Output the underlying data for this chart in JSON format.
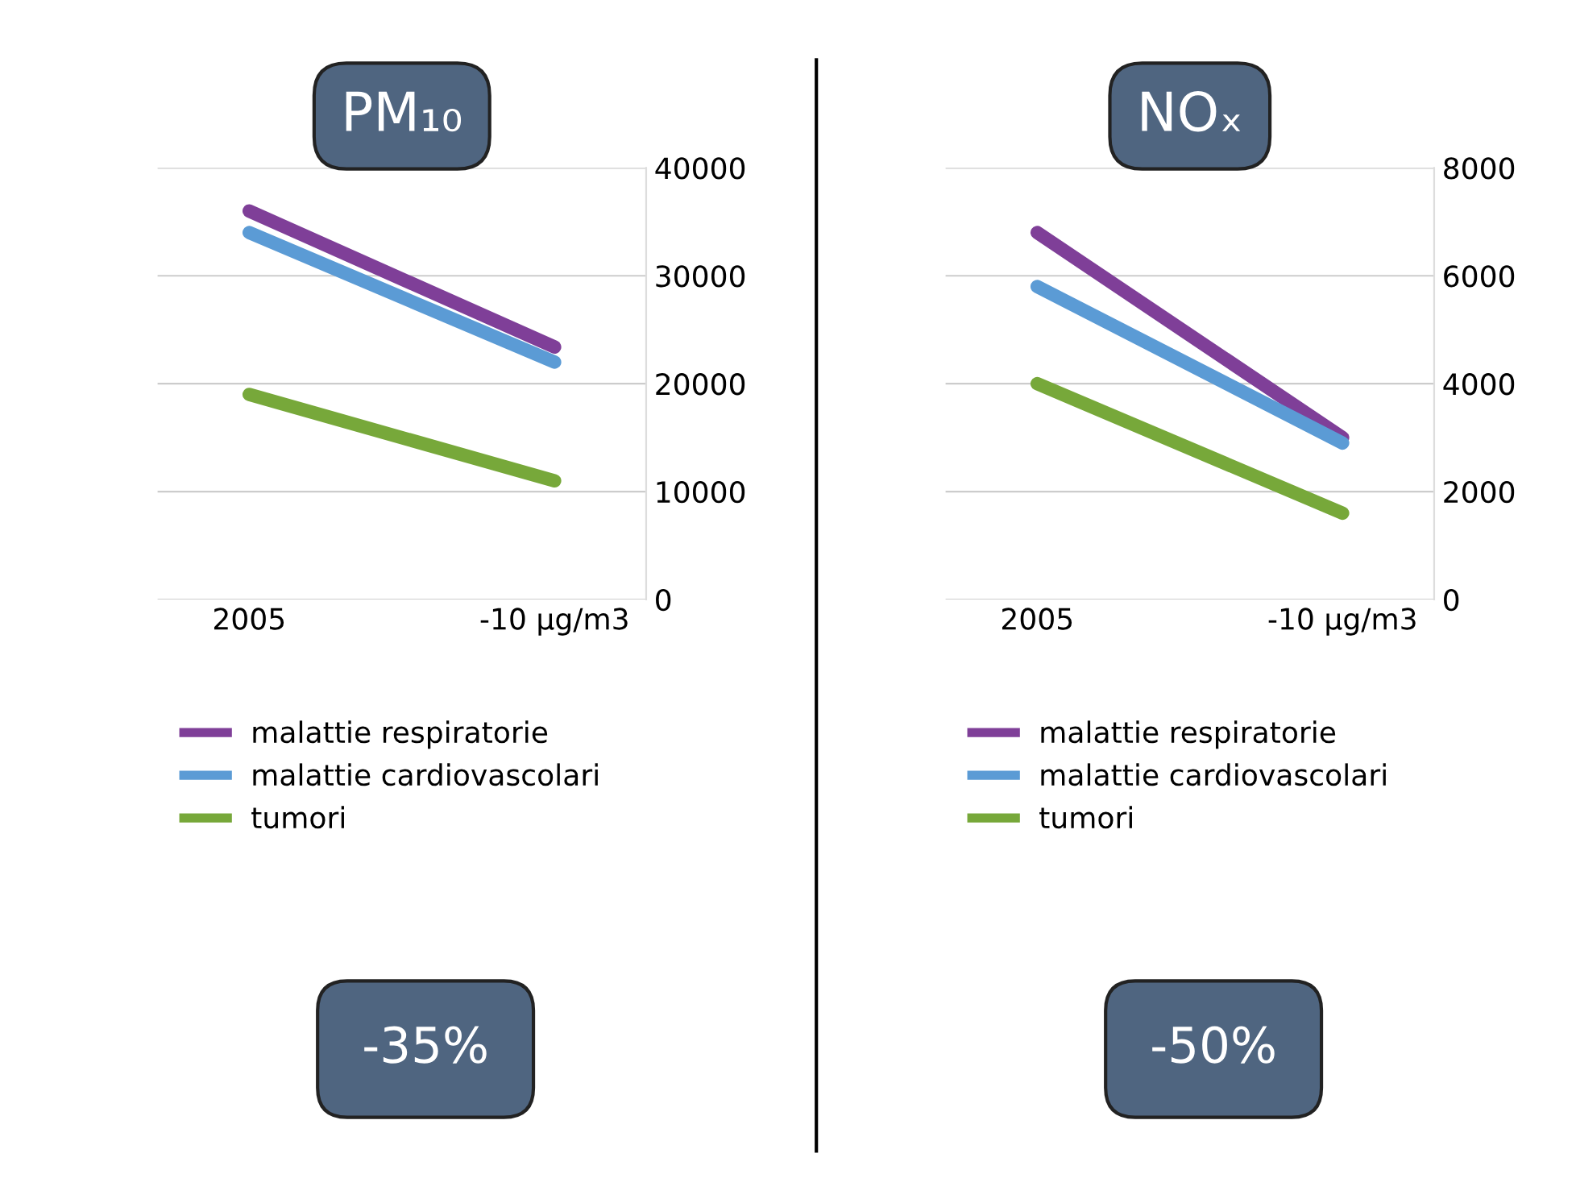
{
  "chart_data": [
    {
      "type": "line",
      "title": "PM₁₀",
      "categories": [
        "2005",
        "-10 µg/m3"
      ],
      "series": [
        {
          "name": "malattie respiratorie",
          "color": "#7f3f98",
          "values": [
            36000,
            23400
          ]
        },
        {
          "name": "malattie cardiovascolari",
          "color": "#5b9bd5",
          "values": [
            34000,
            22000
          ]
        },
        {
          "name": "tumori",
          "color": "#77a83a",
          "values": [
            19000,
            11000
          ]
        }
      ],
      "ylim": [
        0,
        40000
      ],
      "yticks": [
        0,
        10000,
        20000,
        30000,
        40000
      ],
      "grid": "y",
      "legend": "bottom",
      "marker": "none",
      "line_style": "solid",
      "annotations": [
        "-35%"
      ]
    },
    {
      "type": "line",
      "title": "NOₓ",
      "categories": [
        "2005",
        "-10 µg/m3"
      ],
      "series": [
        {
          "name": "malattie respiratorie",
          "color": "#7f3f98",
          "values": [
            6800,
            3000
          ]
        },
        {
          "name": "malattie cardiovascolari",
          "color": "#5b9bd5",
          "values": [
            5800,
            2900
          ]
        },
        {
          "name": "tumori",
          "color": "#77a83a",
          "values": [
            4000,
            1600
          ]
        }
      ],
      "ylim": [
        0,
        8000
      ],
      "yticks": [
        0,
        2000,
        4000,
        6000,
        8000
      ],
      "grid": "y",
      "legend": "bottom",
      "marker": "none",
      "line_style": "solid",
      "annotations": [
        "-50%"
      ]
    }
  ]
}
